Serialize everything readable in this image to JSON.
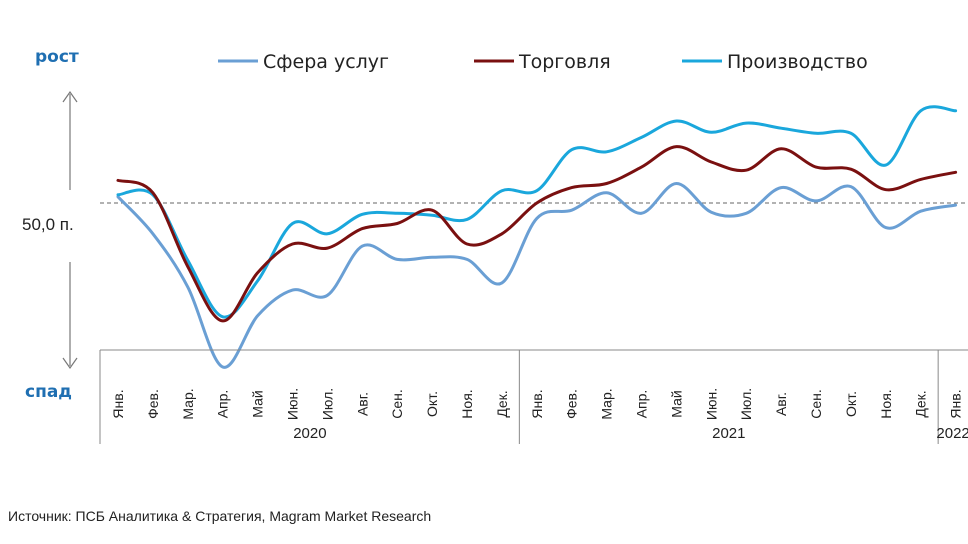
{
  "chart_data": {
    "type": "line",
    "title": "",
    "ylabel_top": "рост",
    "ylabel_bottom": "спад",
    "reference": {
      "value": 50,
      "label": "50,0 п."
    },
    "ylim": [
      34,
      62
    ],
    "categories": [
      "Янв.",
      "Фев.",
      "Мар.",
      "Апр.",
      "Май",
      "Июн.",
      "Июл.",
      "Авг.",
      "Сен.",
      "Окт.",
      "Ноя.",
      "Дек.",
      "Янв.",
      "Фев.",
      "Мар.",
      "Апр.",
      "Май",
      "Июн.",
      "Июл.",
      "Авг.",
      "Сен.",
      "Окт.",
      "Ноя.",
      "Дек.",
      "Янв."
    ],
    "years": [
      {
        "label": "2020",
        "start": 0,
        "end": 11
      },
      {
        "label": "2021",
        "start": 12,
        "end": 23
      },
      {
        "label": "2022",
        "start": 24,
        "end": 24
      }
    ],
    "series": [
      {
        "name": "Сфера услуг",
        "color": "#6a9fd4",
        "values": [
          50.6,
          47.0,
          41.8,
          34.0,
          39.0,
          41.5,
          41.0,
          45.8,
          44.5,
          44.7,
          44.5,
          42.2,
          48.5,
          49.3,
          51.0,
          49.0,
          51.9,
          49.1,
          49.0,
          51.5,
          50.2,
          51.6,
          47.6,
          49.2,
          49.8
        ]
      },
      {
        "name": "Торговля",
        "color": "#7a1010",
        "values": [
          52.2,
          51.0,
          43.8,
          38.5,
          43.2,
          46.0,
          45.6,
          47.5,
          48.0,
          49.3,
          46.0,
          47.0,
          50.0,
          51.5,
          51.9,
          53.5,
          55.5,
          54.0,
          53.2,
          55.3,
          53.5,
          53.3,
          51.3,
          52.3,
          53.0
        ]
      },
      {
        "name": "Производство",
        "color": "#1aa7dc",
        "values": [
          50.8,
          50.8,
          44.4,
          38.9,
          42.4,
          48.0,
          47.0,
          48.9,
          49.0,
          48.8,
          48.4,
          51.2,
          51.2,
          55.2,
          55.0,
          56.4,
          58.0,
          56.9,
          57.8,
          57.3,
          56.8,
          56.8,
          53.7,
          59.0,
          59.0
        ]
      }
    ]
  },
  "source": "Источник: ПСБ Аналитика & Стратегия, Magram Market Research"
}
